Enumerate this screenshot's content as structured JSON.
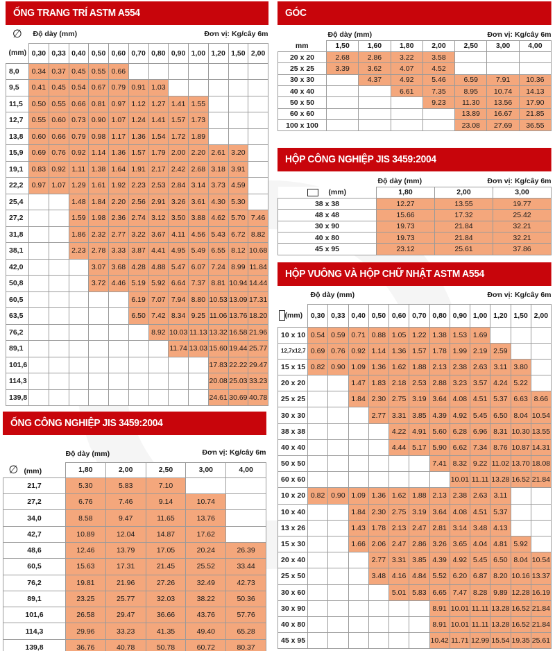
{
  "common": {
    "thickness_label": "Độ dày (mm)",
    "unit_label": "Đơn vị:  Kg/cây 6m",
    "mm_label": "(mm)",
    "diameter_symbol": "∅"
  },
  "colors": {
    "banner_red": "#c8050b",
    "filled_cell": "#f4a77c",
    "grid_line": "#9a9a9a"
  },
  "decorative_pipe": {
    "title": "ỐNG TRANG TRÍ ASTM A554",
    "columns": [
      "0,30",
      "0,33",
      "0,40",
      "0,50",
      "0,60",
      "0,70",
      "0,80",
      "0,90",
      "1,00",
      "1,20",
      "1,50",
      "2,00"
    ],
    "rows": [
      {
        "size": "8,0",
        "values": [
          "0.34",
          "0.37",
          "0.45",
          "0.55",
          "0.66",
          "",
          "",
          "",
          "",
          "",
          "",
          ""
        ]
      },
      {
        "size": "9,5",
        "values": [
          "0.41",
          "0.45",
          "0.54",
          "0.67",
          "0.79",
          "0.91",
          "1.03",
          "",
          "",
          "",
          "",
          ""
        ]
      },
      {
        "size": "11,5",
        "values": [
          "0.50",
          "0.55",
          "0.66",
          "0.81",
          "0.97",
          "1.12",
          "1.27",
          "1.41",
          "1.55",
          "",
          "",
          ""
        ]
      },
      {
        "size": "12,7",
        "values": [
          "0.55",
          "0.60",
          "0.73",
          "0.90",
          "1.07",
          "1.24",
          "1.41",
          "1.57",
          "1.73",
          "",
          "",
          ""
        ]
      },
      {
        "size": "13,8",
        "values": [
          "0.60",
          "0.66",
          "0.79",
          "0.98",
          "1.17",
          "1.36",
          "1.54",
          "1.72",
          "1.89",
          "",
          "",
          ""
        ]
      },
      {
        "size": "15,9",
        "values": [
          "0.69",
          "0.76",
          "0.92",
          "1.14",
          "1.36",
          "1.57",
          "1.79",
          "2.00",
          "2.20",
          "2.61",
          "3.20",
          ""
        ]
      },
      {
        "size": "19,1",
        "values": [
          "0.83",
          "0.92",
          "1.11",
          "1.38",
          "1.64",
          "1.91",
          "2.17",
          "2.42",
          "2.68",
          "3.18",
          "3.91",
          ""
        ]
      },
      {
        "size": "22,2",
        "values": [
          "0.97",
          "1.07",
          "1.29",
          "1.61",
          "1.92",
          "2.23",
          "2.53",
          "2.84",
          "3.14",
          "3.73",
          "4.59",
          ""
        ]
      },
      {
        "size": "25,4",
        "values": [
          "",
          "",
          "1.48",
          "1.84",
          "2.20",
          "2.56",
          "2.91",
          "3.26",
          "3.61",
          "4.30",
          "5.30",
          ""
        ]
      },
      {
        "size": "27,2",
        "values": [
          "",
          "",
          "1.59",
          "1.98",
          "2.36",
          "2.74",
          "3.12",
          "3.50",
          "3.88",
          "4.62",
          "5.70",
          "7.46"
        ]
      },
      {
        "size": "31,8",
        "values": [
          "",
          "",
          "1.86",
          "2.32",
          "2.77",
          "3.22",
          "3.67",
          "4.11",
          "4.56",
          "5.43",
          "6.72",
          "8.82"
        ]
      },
      {
        "size": "38,1",
        "values": [
          "",
          "",
          "2.23",
          "2.78",
          "3.33",
          "3.87",
          "4.41",
          "4.95",
          "5.49",
          "6.55",
          "8.12",
          "10.68"
        ]
      },
      {
        "size": "42,0",
        "values": [
          "",
          "",
          "",
          "3.07",
          "3.68",
          "4.28",
          "4.88",
          "5.47",
          "6.07",
          "7.24",
          "8.99",
          "11.84"
        ]
      },
      {
        "size": "50,8",
        "values": [
          "",
          "",
          "",
          "3.72",
          "4.46",
          "5.19",
          "5.92",
          "6.64",
          "7.37",
          "8.81",
          "10.94",
          "14.44"
        ]
      },
      {
        "size": "60,5",
        "values": [
          "",
          "",
          "",
          "",
          "",
          "6.19",
          "7.07",
          "7.94",
          "8.80",
          "10.53",
          "13.09",
          "17.31"
        ]
      },
      {
        "size": "63,5",
        "values": [
          "",
          "",
          "",
          "",
          "",
          "6.50",
          "7.42",
          "8.34",
          "9.25",
          "11.06",
          "13.76",
          "18.20"
        ]
      },
      {
        "size": "76,2",
        "values": [
          "",
          "",
          "",
          "",
          "",
          "",
          "8.92",
          "10.03",
          "11.13",
          "13.32",
          "16.58",
          "21.96"
        ]
      },
      {
        "size": "89,1",
        "values": [
          "",
          "",
          "",
          "",
          "",
          "",
          "",
          "11.74",
          "13.03",
          "15.60",
          "19.44",
          "25.77"
        ]
      },
      {
        "size": "101,6",
        "values": [
          "",
          "",
          "",
          "",
          "",
          "",
          "",
          "",
          "",
          "17.83",
          "22.22",
          "29.47"
        ]
      },
      {
        "size": "114,3",
        "values": [
          "",
          "",
          "",
          "",
          "",
          "",
          "",
          "",
          "",
          "20.08",
          "25.03",
          "33.23"
        ]
      },
      {
        "size": "139,8",
        "values": [
          "",
          "",
          "",
          "",
          "",
          "",
          "",
          "",
          "",
          "24.61",
          "30.69",
          "40.78"
        ]
      }
    ]
  },
  "industrial_pipe": {
    "title": "ỐNG CÔNG NGHIỆP JIS 3459:2004",
    "columns": [
      "1,80",
      "2,00",
      "2,50",
      "3,00",
      "4,00"
    ],
    "rows": [
      {
        "size": "21,7",
        "values": [
          "5.30",
          "5.83",
          "7.10",
          "",
          ""
        ]
      },
      {
        "size": "27,2",
        "values": [
          "6.76",
          "7.46",
          "9.14",
          "10.74",
          ""
        ]
      },
      {
        "size": "34,0",
        "values": [
          "8.58",
          "9.47",
          "11.65",
          "13.76",
          ""
        ]
      },
      {
        "size": "42,7",
        "values": [
          "10.89",
          "12.04",
          "14.87",
          "17.62",
          ""
        ]
      },
      {
        "size": "48,6",
        "values": [
          "12.46",
          "13.79",
          "17.05",
          "20.24",
          "26.39"
        ]
      },
      {
        "size": "60,5",
        "values": [
          "15.63",
          "17.31",
          "21.45",
          "25.52",
          "33.44"
        ]
      },
      {
        "size": "76,2",
        "values": [
          "19.81",
          "21.96",
          "27.26",
          "32.49",
          "42.73"
        ]
      },
      {
        "size": "89,1",
        "values": [
          "23.25",
          "25.77",
          "32.03",
          "38.22",
          "50.36"
        ]
      },
      {
        "size": "101,6",
        "values": [
          "26.58",
          "29.47",
          "36.66",
          "43.76",
          "57.76"
        ]
      },
      {
        "size": "114,3",
        "values": [
          "29.96",
          "33.23",
          "41.35",
          "49.40",
          "65.28"
        ]
      },
      {
        "size": "139,8",
        "values": [
          "36.76",
          "40.78",
          "50.78",
          "60.72",
          "80.37"
        ]
      }
    ]
  },
  "angle": {
    "title": "GÓC",
    "size_header": "mm",
    "columns": [
      "1,50",
      "1,60",
      "1,80",
      "2,00",
      "2,50",
      "3,00",
      "4,00"
    ],
    "rows": [
      {
        "size": "20 x 20",
        "values": [
          "2.68",
          "2.86",
          "3.22",
          "3.58",
          "",
          "",
          ""
        ]
      },
      {
        "size": "25 x 25",
        "values": [
          "3.39",
          "3.62",
          "4.07",
          "4.52",
          "",
          "",
          ""
        ]
      },
      {
        "size": "30 x 30",
        "values": [
          "",
          "4.37",
          "4.92",
          "5.46",
          "6.59",
          "7.91",
          "10.36"
        ]
      },
      {
        "size": "40 x 40",
        "values": [
          "",
          "",
          "6.61",
          "7.35",
          "8.95",
          "10.74",
          "14.13"
        ]
      },
      {
        "size": "50 x 50",
        "values": [
          "",
          "",
          "",
          "9.23",
          "11.30",
          "13.56",
          "17.90"
        ]
      },
      {
        "size": "60 x 60",
        "values": [
          "",
          "",
          "",
          "",
          "13.89",
          "16.67",
          "21.85"
        ]
      },
      {
        "size": "100 x 100",
        "values": [
          "",
          "",
          "",
          "",
          "23.08",
          "27.69",
          "36.55"
        ]
      }
    ]
  },
  "industrial_box": {
    "title": "HỘP CÔNG NGHIỆP JIS 3459:2004",
    "columns": [
      "1,80",
      "2,00",
      "3,00"
    ],
    "rows": [
      {
        "size": "38 x 38",
        "values": [
          "12.27",
          "13.55",
          "19.77"
        ]
      },
      {
        "size": "48 x 48",
        "values": [
          "15.66",
          "17.32",
          "25.42"
        ]
      },
      {
        "size": "30 x 90",
        "values": [
          "19.73",
          "21.84",
          "32.21"
        ]
      },
      {
        "size": "40 x 80",
        "values": [
          "19.73",
          "21.84",
          "32.21"
        ]
      },
      {
        "size": "45 x 95",
        "values": [
          "23.12",
          "25.61",
          "37.86"
        ]
      }
    ]
  },
  "square_rect_box": {
    "title": "HỘP VUÔNG VÀ HỘP CHỮ NHẬT ASTM A554",
    "columns": [
      "0,30",
      "0,33",
      "0,40",
      "0,50",
      "0,60",
      "0,70",
      "0,80",
      "0,90",
      "1,00",
      "1,20",
      "1,50",
      "2,00"
    ],
    "rows": [
      {
        "size": "10 x 10",
        "values": [
          "0.54",
          "0.59",
          "0.71",
          "0.88",
          "1.05",
          "1.22",
          "1.38",
          "1.53",
          "1.69",
          "",
          "",
          ""
        ]
      },
      {
        "size": "12,7x12,7",
        "values": [
          "0.69",
          "0.76",
          "0.92",
          "1.14",
          "1.36",
          "1.57",
          "1.78",
          "1.99",
          "2.19",
          "2.59",
          "",
          ""
        ]
      },
      {
        "size": "15 x 15",
        "values": [
          "0.82",
          "0.90",
          "1.09",
          "1.36",
          "1.62",
          "1.88",
          "2.13",
          "2.38",
          "2.63",
          "3.11",
          "3.80",
          ""
        ]
      },
      {
        "size": "20 x 20",
        "values": [
          "",
          "",
          "1.47",
          "1.83",
          "2.18",
          "2.53",
          "2.88",
          "3.23",
          "3.57",
          "4.24",
          "5.22",
          ""
        ]
      },
      {
        "size": "25 x 25",
        "values": [
          "",
          "",
          "1.84",
          "2.30",
          "2.75",
          "3.19",
          "3.64",
          "4.08",
          "4.51",
          "5.37",
          "6.63",
          "8.66"
        ]
      },
      {
        "size": "30 x 30",
        "values": [
          "",
          "",
          "",
          "2.77",
          "3.31",
          "3.85",
          "4.39",
          "4.92",
          "5.45",
          "6.50",
          "8.04",
          "10.54"
        ]
      },
      {
        "size": "38 x 38",
        "values": [
          "",
          "",
          "",
          "",
          "4.22",
          "4.91",
          "5.60",
          "6.28",
          "6.96",
          "8.31",
          "10.30",
          "13.55"
        ]
      },
      {
        "size": "40 x 40",
        "values": [
          "",
          "",
          "",
          "",
          "4.44",
          "5.17",
          "5.90",
          "6.62",
          "7.34",
          "8.76",
          "10.87",
          "14.31"
        ]
      },
      {
        "size": "50 x 50",
        "values": [
          "",
          "",
          "",
          "",
          "",
          "",
          "7.41",
          "8.32",
          "9.22",
          "11.02",
          "13.70",
          "18.08"
        ]
      },
      {
        "size": "60 x 60",
        "values": [
          "",
          "",
          "",
          "",
          "",
          "",
          "",
          "10.01",
          "11.11",
          "13.28",
          "16.52",
          "21.84"
        ]
      },
      {
        "size": "10 x 20",
        "values": [
          "0.82",
          "0.90",
          "1.09",
          "1.36",
          "1.62",
          "1.88",
          "2.13",
          "2.38",
          "2.63",
          "3.11",
          "",
          ""
        ]
      },
      {
        "size": "10 x 40",
        "values": [
          "",
          "",
          "1.84",
          "2.30",
          "2.75",
          "3.19",
          "3.64",
          "4.08",
          "4.51",
          "5.37",
          "",
          ""
        ]
      },
      {
        "size": "13 x 26",
        "values": [
          "",
          "",
          "1.43",
          "1.78",
          "2.13",
          "2.47",
          "2.81",
          "3.14",
          "3.48",
          "4.13",
          "",
          ""
        ]
      },
      {
        "size": "15 x 30",
        "values": [
          "",
          "",
          "1.66",
          "2.06",
          "2.47",
          "2.86",
          "3.26",
          "3.65",
          "4.04",
          "4.81",
          "5.92",
          ""
        ]
      },
      {
        "size": "20 x 40",
        "values": [
          "",
          "",
          "",
          "2.77",
          "3.31",
          "3.85",
          "4.39",
          "4.92",
          "5.45",
          "6.50",
          "8.04",
          "10.54"
        ]
      },
      {
        "size": "25 x 50",
        "values": [
          "",
          "",
          "",
          "3.48",
          "4.16",
          "4.84",
          "5.52",
          "6.20",
          "6.87",
          "8.20",
          "10.16",
          "13.37"
        ]
      },
      {
        "size": "30 x 60",
        "values": [
          "",
          "",
          "",
          "",
          "5.01",
          "5.83",
          "6.65",
          "7.47",
          "8.28",
          "9.89",
          "12.28",
          "16.19"
        ]
      },
      {
        "size": "30 x 90",
        "values": [
          "",
          "",
          "",
          "",
          "",
          "",
          "8.91",
          "10.01",
          "11.11",
          "13.28",
          "16.52",
          "21.84"
        ]
      },
      {
        "size": "40 x 80",
        "values": [
          "",
          "",
          "",
          "",
          "",
          "",
          "8.91",
          "10.01",
          "11.11",
          "13.28",
          "16.52",
          "21.84"
        ]
      },
      {
        "size": "45 x 95",
        "values": [
          "",
          "",
          "",
          "",
          "",
          "",
          "10.42",
          "11.71",
          "12.99",
          "15.54",
          "19.35",
          "25.61"
        ]
      }
    ]
  }
}
